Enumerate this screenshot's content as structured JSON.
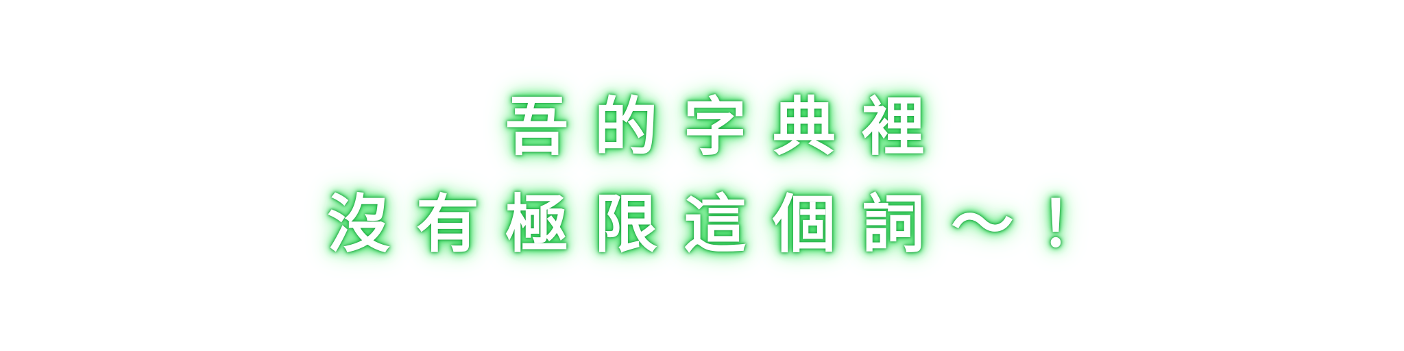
{
  "caption": {
    "line1": "吾的字典裡",
    "line2": "沒有極限這個詞～！"
  },
  "colors": {
    "text_fill": "#ffffff",
    "glow": "#37d65c",
    "background": "#ffffff"
  }
}
